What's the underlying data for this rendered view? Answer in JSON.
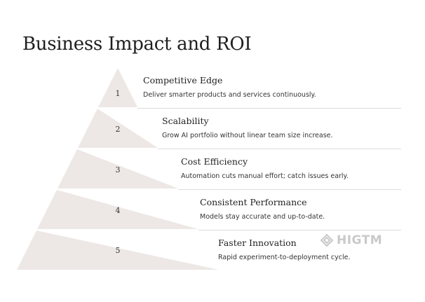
{
  "title": "Business Impact and ROI",
  "colors": {
    "pyramid_fill": "#ede8e5",
    "separator": "#dcdcdc",
    "text": "#1f1f1f"
  },
  "levels": [
    {
      "number": "1",
      "title": "Competitive Edge",
      "description": "Deliver smarter products and services continuously."
    },
    {
      "number": "2",
      "title": "Scalability",
      "description": "Grow AI portfolio without linear team size increase."
    },
    {
      "number": "3",
      "title": "Cost Efficiency",
      "description": "Automation cuts manual effort; catch issues early."
    },
    {
      "number": "4",
      "title": "Consistent Performance",
      "description": "Models stay accurate and up-to-date."
    },
    {
      "number": "5",
      "title": "Faster Innovation",
      "description": "Rapid experiment-to-deployment cycle."
    }
  ],
  "watermark": {
    "text": "HIGTM",
    "icon": "higtm-logo-icon"
  }
}
